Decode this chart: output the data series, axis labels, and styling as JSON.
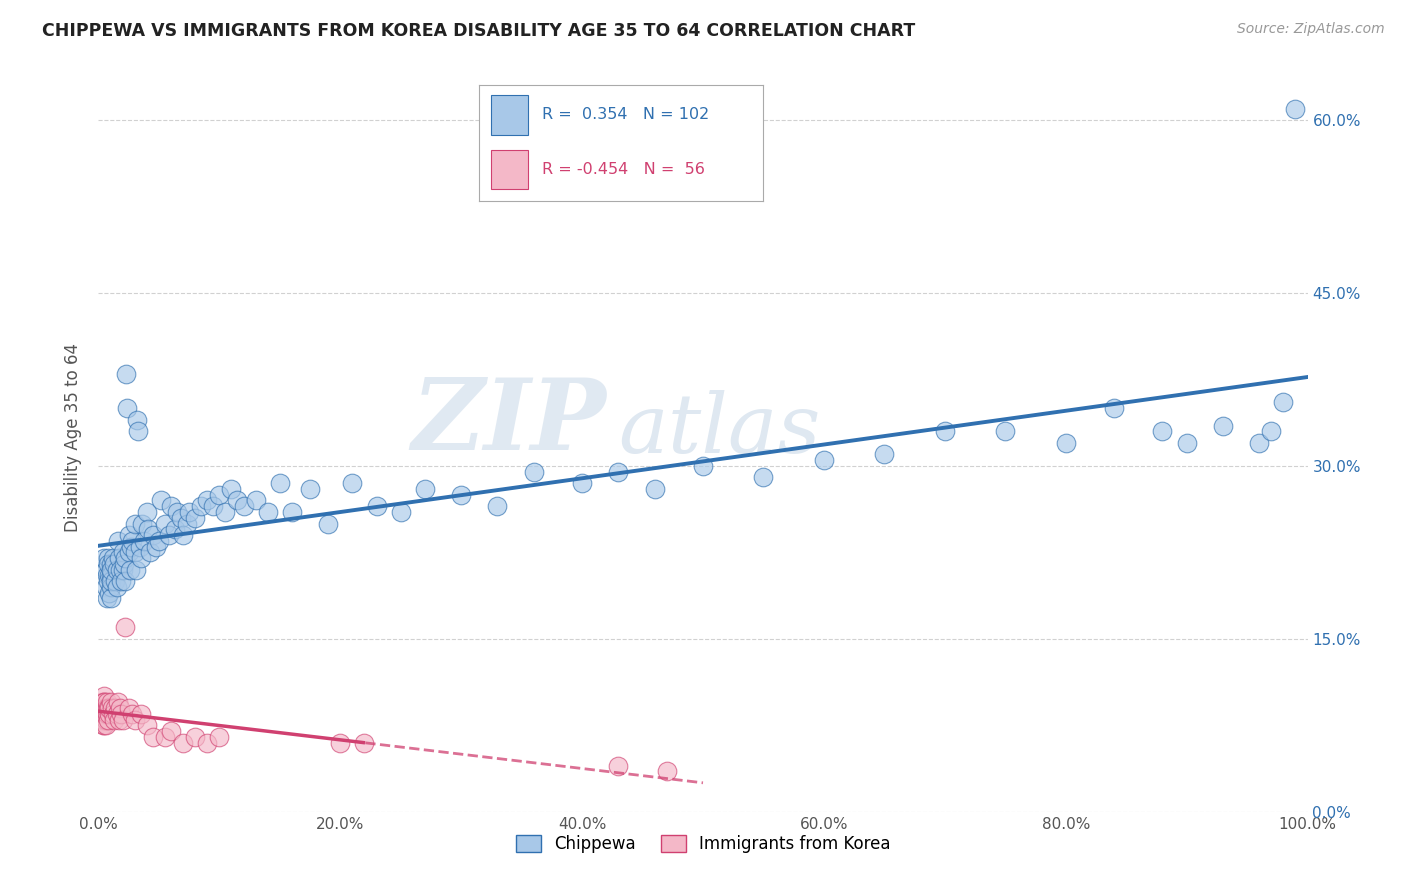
{
  "title": "CHIPPEWA VS IMMIGRANTS FROM KOREA DISABILITY AGE 35 TO 64 CORRELATION CHART",
  "source": "Source: ZipAtlas.com",
  "ylabel": "Disability Age 35 to 64",
  "xlabel": "",
  "legend_label1": "Chippewa",
  "legend_label2": "Immigrants from Korea",
  "r1": 0.354,
  "n1": 102,
  "r2": -0.454,
  "n2": 56,
  "xlim": [
    0,
    1.0
  ],
  "ylim": [
    0,
    0.65
  ],
  "xticks": [
    0.0,
    0.2,
    0.4,
    0.6,
    0.8,
    1.0
  ],
  "xticklabels": [
    "0.0%",
    "20.0%",
    "40.0%",
    "60.0%",
    "80.0%",
    "100.0%"
  ],
  "yticks": [
    0.0,
    0.15,
    0.3,
    0.45,
    0.6
  ],
  "yticklabels": [
    "0.0%",
    "15.0%",
    "30.0%",
    "45.0%",
    "60.0%"
  ],
  "color_blue": "#a8c8e8",
  "color_pink": "#f4b8c8",
  "line_color_blue": "#3070b0",
  "line_color_pink": "#d04070",
  "watermark_zip": "ZIP",
  "watermark_atlas": "atlas",
  "background_color": "#ffffff",
  "chippewa_x": [
    0.005,
    0.006,
    0.006,
    0.007,
    0.007,
    0.008,
    0.008,
    0.008,
    0.009,
    0.009,
    0.01,
    0.01,
    0.01,
    0.01,
    0.01,
    0.01,
    0.012,
    0.013,
    0.014,
    0.015,
    0.015,
    0.016,
    0.017,
    0.018,
    0.019,
    0.02,
    0.02,
    0.021,
    0.022,
    0.022,
    0.023,
    0.024,
    0.025,
    0.025,
    0.026,
    0.027,
    0.028,
    0.03,
    0.03,
    0.031,
    0.032,
    0.033,
    0.034,
    0.035,
    0.036,
    0.038,
    0.04,
    0.041,
    0.043,
    0.045,
    0.048,
    0.05,
    0.052,
    0.055,
    0.058,
    0.06,
    0.063,
    0.065,
    0.068,
    0.07,
    0.073,
    0.075,
    0.08,
    0.085,
    0.09,
    0.095,
    0.1,
    0.105,
    0.11,
    0.115,
    0.12,
    0.13,
    0.14,
    0.15,
    0.16,
    0.175,
    0.19,
    0.21,
    0.23,
    0.25,
    0.27,
    0.3,
    0.33,
    0.36,
    0.4,
    0.43,
    0.46,
    0.5,
    0.55,
    0.6,
    0.65,
    0.7,
    0.75,
    0.8,
    0.84,
    0.88,
    0.9,
    0.93,
    0.96,
    0.97,
    0.98,
    0.99
  ],
  "chippewa_y": [
    0.22,
    0.21,
    0.195,
    0.205,
    0.185,
    0.22,
    0.2,
    0.215,
    0.19,
    0.205,
    0.215,
    0.205,
    0.195,
    0.185,
    0.2,
    0.21,
    0.22,
    0.215,
    0.2,
    0.21,
    0.195,
    0.235,
    0.22,
    0.21,
    0.2,
    0.21,
    0.225,
    0.215,
    0.2,
    0.22,
    0.38,
    0.35,
    0.24,
    0.225,
    0.21,
    0.23,
    0.235,
    0.25,
    0.225,
    0.21,
    0.34,
    0.33,
    0.23,
    0.22,
    0.25,
    0.235,
    0.26,
    0.245,
    0.225,
    0.24,
    0.23,
    0.235,
    0.27,
    0.25,
    0.24,
    0.265,
    0.245,
    0.26,
    0.255,
    0.24,
    0.25,
    0.26,
    0.255,
    0.265,
    0.27,
    0.265,
    0.275,
    0.26,
    0.28,
    0.27,
    0.265,
    0.27,
    0.26,
    0.285,
    0.26,
    0.28,
    0.25,
    0.285,
    0.265,
    0.26,
    0.28,
    0.275,
    0.265,
    0.295,
    0.285,
    0.295,
    0.28,
    0.3,
    0.29,
    0.305,
    0.31,
    0.33,
    0.33,
    0.32,
    0.35,
    0.33,
    0.32,
    0.335,
    0.32,
    0.33,
    0.355,
    0.61
  ],
  "korea_x": [
    0.003,
    0.003,
    0.003,
    0.004,
    0.004,
    0.004,
    0.004,
    0.004,
    0.005,
    0.005,
    0.005,
    0.005,
    0.005,
    0.005,
    0.005,
    0.005,
    0.005,
    0.006,
    0.006,
    0.006,
    0.006,
    0.007,
    0.007,
    0.007,
    0.008,
    0.008,
    0.009,
    0.009,
    0.01,
    0.011,
    0.012,
    0.013,
    0.014,
    0.015,
    0.016,
    0.017,
    0.018,
    0.019,
    0.02,
    0.022,
    0.025,
    0.028,
    0.03,
    0.035,
    0.04,
    0.045,
    0.055,
    0.06,
    0.07,
    0.08,
    0.09,
    0.1,
    0.2,
    0.22,
    0.43,
    0.47
  ],
  "korea_y": [
    0.095,
    0.085,
    0.09,
    0.08,
    0.075,
    0.085,
    0.09,
    0.08,
    0.1,
    0.09,
    0.085,
    0.095,
    0.08,
    0.075,
    0.085,
    0.09,
    0.095,
    0.085,
    0.09,
    0.08,
    0.075,
    0.09,
    0.085,
    0.095,
    0.08,
    0.09,
    0.085,
    0.09,
    0.095,
    0.09,
    0.085,
    0.08,
    0.09,
    0.085,
    0.095,
    0.08,
    0.09,
    0.085,
    0.08,
    0.16,
    0.09,
    0.085,
    0.08,
    0.085,
    0.075,
    0.065,
    0.065,
    0.07,
    0.06,
    0.065,
    0.06,
    0.065,
    0.06,
    0.06,
    0.04,
    0.035
  ]
}
